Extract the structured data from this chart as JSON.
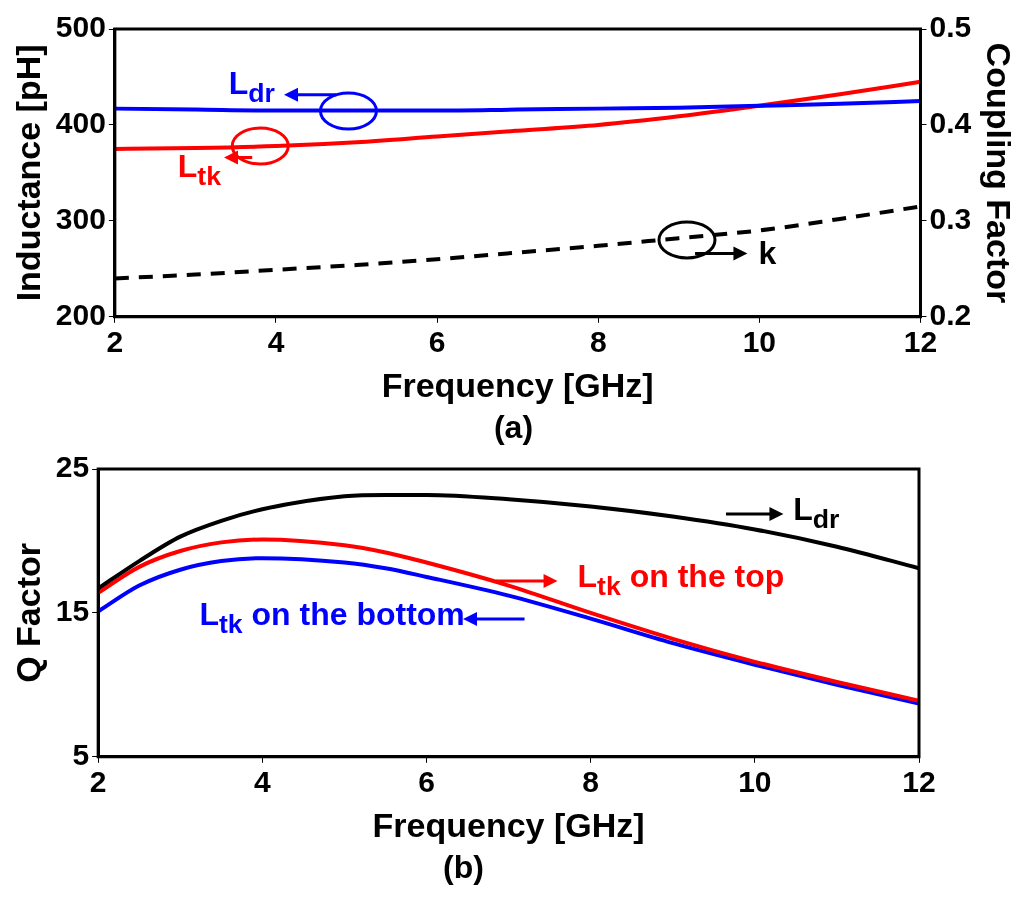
{
  "chart_data": [
    {
      "type": "line",
      "title": "(a)",
      "xlabel": "Frequency [GHz]",
      "ylabel": "Inductance [pH]",
      "y2label": "Coupling Factor",
      "x": [
        2,
        3,
        4,
        5,
        6,
        7,
        8,
        9,
        10,
        11,
        12
      ],
      "series": [
        {
          "name": "L$_{dr}$",
          "color": "#0000ff",
          "values": [
            417,
            416,
            415,
            415,
            415,
            416,
            417,
            418,
            420,
            422,
            425
          ]
        },
        {
          "name": "L$_{tk}$",
          "color": "#ff0000",
          "values": [
            375,
            376,
            378,
            382,
            388,
            394,
            400,
            409,
            420,
            432,
            445
          ]
        },
        {
          "name": "k",
          "color": "#000000",
          "axis": "y2",
          "line_style": "dashed",
          "values": [
            0.24,
            0.244,
            0.249,
            0.254,
            0.26,
            0.267,
            0.274,
            0.282,
            0.29,
            0.302,
            0.315
          ]
        }
      ],
      "xlim": [
        2,
        12
      ],
      "xticks": [
        2,
        4,
        6,
        8,
        10,
        12
      ],
      "ylim": [
        200,
        500
      ],
      "yticks": [
        200,
        300,
        400,
        500
      ],
      "y2lim": [
        0.2,
        0.5
      ],
      "y2ticks": [
        0.2,
        0.3,
        0.4,
        0.5
      ],
      "grid": false,
      "legend": "top left",
      "marker": "none"
    },
    {
      "type": "line",
      "title": "(b)",
      "xlabel": "Frequency [GHz]",
      "ylabel": "Q Factor",
      "x": [
        2,
        2.5,
        3,
        3.5,
        4,
        5,
        5.5,
        6,
        7,
        8,
        9,
        10,
        11,
        12
      ],
      "series": [
        {
          "name": "L$_{dr}$",
          "color": "#000000",
          "values": [
            16.7,
            18.6,
            20.3,
            21.4,
            22.2,
            23.1,
            23.2,
            23.2,
            22.9,
            22.4,
            21.7,
            20.8,
            19.6,
            18.1
          ]
        },
        {
          "name": "L$_{tk}$ on the top",
          "color": "#ff0000",
          "values": [
            16.4,
            18.2,
            19.3,
            19.9,
            20.1,
            19.7,
            19.2,
            18.5,
            16.9,
            15.0,
            13.2,
            11.6,
            10.2,
            8.9
          ]
        },
        {
          "name": "L$_{tk}$ on the bottom",
          "color": "#0000ff",
          "values": [
            15.1,
            16.9,
            18.0,
            18.6,
            18.8,
            18.5,
            18.1,
            17.5,
            16.2,
            14.6,
            12.9,
            11.4,
            10.0,
            8.7
          ]
        }
      ],
      "xlim": [
        2,
        12
      ],
      "xticks": [
        2,
        4,
        6,
        8,
        10,
        12
      ],
      "ylim": [
        5,
        25
      ],
      "yticks": [
        5,
        15,
        25
      ],
      "grid": false,
      "legend": "right",
      "marker": "none"
    }
  ]
}
